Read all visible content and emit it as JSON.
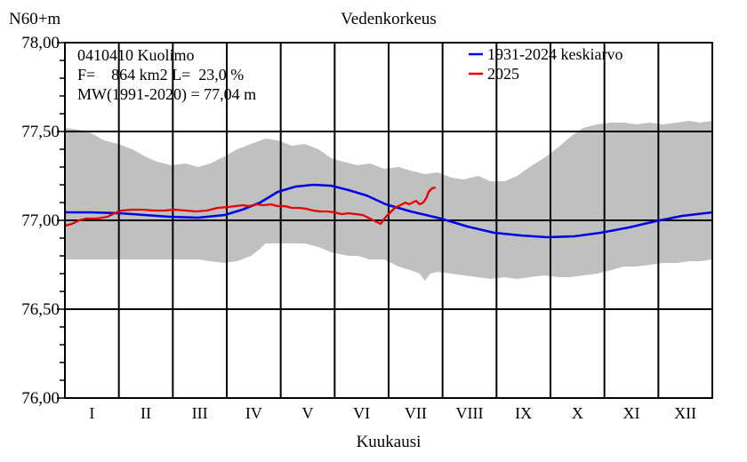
{
  "chart_data": {
    "type": "line",
    "title": "Vedenkorkeus",
    "ylabel": "N60+m",
    "xlabel": "Kuukausi",
    "ylim": [
      76.0,
      78.0
    ],
    "yticks": [
      {
        "value": 78.0,
        "label": "78,00"
      },
      {
        "value": 77.5,
        "label": "77,50"
      },
      {
        "value": 77.0,
        "label": "77,00"
      },
      {
        "value": 76.5,
        "label": "76,50"
      },
      {
        "value": 76.0,
        "label": "76,00"
      }
    ],
    "months": [
      "I",
      "II",
      "III",
      "IV",
      "V",
      "VI",
      "VII",
      "VIII",
      "IX",
      "X",
      "XI",
      "XII"
    ],
    "info": [
      "0410410 Kuolimo",
      "F=    864 km2 L=  23,0 %",
      "MW(1991-2020) = 77,04 m"
    ],
    "legend": [
      {
        "label": "1931-2024 keskiarvo",
        "color": "#0000e6"
      },
      {
        "label": "2025",
        "color": "#e60000"
      }
    ],
    "envelope": {
      "color": "#c0c0c0",
      "upper": [
        [
          0,
          77.52
        ],
        [
          8,
          77.51
        ],
        [
          15,
          77.49
        ],
        [
          22,
          77.45
        ],
        [
          30,
          77.43
        ],
        [
          38,
          77.4
        ],
        [
          45,
          77.36
        ],
        [
          52,
          77.33
        ],
        [
          60,
          77.31
        ],
        [
          68,
          77.32
        ],
        [
          75,
          77.3
        ],
        [
          82,
          77.32
        ],
        [
          90,
          77.36
        ],
        [
          97,
          77.4
        ],
        [
          105,
          77.43
        ],
        [
          113,
          77.46
        ],
        [
          120,
          77.45
        ],
        [
          128,
          77.42
        ],
        [
          135,
          77.43
        ],
        [
          143,
          77.4
        ],
        [
          150,
          77.35
        ],
        [
          157,
          77.33
        ],
        [
          165,
          77.31
        ],
        [
          172,
          77.32
        ],
        [
          180,
          77.29
        ],
        [
          188,
          77.3
        ],
        [
          195,
          77.28
        ],
        [
          203,
          77.26
        ],
        [
          210,
          77.27
        ],
        [
          218,
          77.24
        ],
        [
          225,
          77.23
        ],
        [
          233,
          77.25
        ],
        [
          240,
          77.22
        ],
        [
          248,
          77.22
        ],
        [
          255,
          77.25
        ],
        [
          262,
          77.3
        ],
        [
          270,
          77.35
        ],
        [
          278,
          77.41
        ],
        [
          285,
          77.47
        ],
        [
          292,
          77.52
        ],
        [
          300,
          77.54
        ],
        [
          308,
          77.55
        ],
        [
          315,
          77.55
        ],
        [
          322,
          77.54
        ],
        [
          330,
          77.55
        ],
        [
          337,
          77.54
        ],
        [
          345,
          77.55
        ],
        [
          352,
          77.56
        ],
        [
          358,
          77.55
        ],
        [
          365,
          77.56
        ]
      ],
      "lower": [
        [
          0,
          76.78
        ],
        [
          15,
          76.78
        ],
        [
          30,
          76.78
        ],
        [
          45,
          76.78
        ],
        [
          60,
          76.78
        ],
        [
          75,
          76.78
        ],
        [
          82,
          76.77
        ],
        [
          90,
          76.76
        ],
        [
          97,
          76.77
        ],
        [
          105,
          76.8
        ],
        [
          110,
          76.84
        ],
        [
          113,
          76.87
        ],
        [
          120,
          76.87
        ],
        [
          135,
          76.87
        ],
        [
          143,
          76.85
        ],
        [
          150,
          76.82
        ],
        [
          160,
          76.8
        ],
        [
          165,
          76.8
        ],
        [
          172,
          76.78
        ],
        [
          180,
          76.78
        ],
        [
          188,
          76.74
        ],
        [
          195,
          76.72
        ],
        [
          200,
          76.7
        ],
        [
          203,
          76.66
        ],
        [
          206,
          76.7
        ],
        [
          210,
          76.71
        ],
        [
          218,
          76.7
        ],
        [
          225,
          76.69
        ],
        [
          233,
          76.68
        ],
        [
          240,
          76.67
        ],
        [
          248,
          76.68
        ],
        [
          255,
          76.67
        ],
        [
          262,
          76.68
        ],
        [
          270,
          76.69
        ],
        [
          278,
          76.68
        ],
        [
          285,
          76.68
        ],
        [
          292,
          76.69
        ],
        [
          300,
          76.7
        ],
        [
          308,
          76.72
        ],
        [
          315,
          76.74
        ],
        [
          322,
          76.74
        ],
        [
          330,
          76.75
        ],
        [
          337,
          76.76
        ],
        [
          345,
          76.76
        ],
        [
          352,
          76.77
        ],
        [
          358,
          76.77
        ],
        [
          365,
          76.78
        ]
      ]
    },
    "series": [
      {
        "name": "1931-2024 keskiarvo",
        "color": "#0000e6",
        "points": [
          [
            0,
            77.045
          ],
          [
            15,
            77.045
          ],
          [
            31,
            77.04
          ],
          [
            45,
            77.03
          ],
          [
            59,
            77.02
          ],
          [
            75,
            77.015
          ],
          [
            90,
            77.03
          ],
          [
            100,
            77.06
          ],
          [
            110,
            77.1
          ],
          [
            120,
            77.16
          ],
          [
            130,
            77.19
          ],
          [
            140,
            77.2
          ],
          [
            150,
            77.195
          ],
          [
            160,
            77.17
          ],
          [
            170,
            77.14
          ],
          [
            181,
            77.09
          ],
          [
            195,
            77.05
          ],
          [
            212,
            77.01
          ],
          [
            227,
            76.965
          ],
          [
            242,
            76.93
          ],
          [
            257,
            76.915
          ],
          [
            272,
            76.905
          ],
          [
            287,
            76.91
          ],
          [
            302,
            76.93
          ],
          [
            318,
            76.96
          ],
          [
            333,
            76.995
          ],
          [
            348,
            77.025
          ],
          [
            365,
            77.045
          ]
        ]
      },
      {
        "name": "2025",
        "color": "#e60000",
        "points": [
          [
            0,
            76.97
          ],
          [
            4,
            76.98
          ],
          [
            8,
            77.0
          ],
          [
            12,
            77.01
          ],
          [
            18,
            77.01
          ],
          [
            24,
            77.02
          ],
          [
            28,
            77.04
          ],
          [
            32,
            77.055
          ],
          [
            38,
            77.06
          ],
          [
            44,
            77.06
          ],
          [
            50,
            77.055
          ],
          [
            56,
            77.055
          ],
          [
            62,
            77.06
          ],
          [
            68,
            77.055
          ],
          [
            74,
            77.05
          ],
          [
            80,
            77.055
          ],
          [
            86,
            77.07
          ],
          [
            92,
            77.075
          ],
          [
            96,
            77.08
          ],
          [
            100,
            77.085
          ],
          [
            104,
            77.08
          ],
          [
            108,
            77.09
          ],
          [
            112,
            77.085
          ],
          [
            116,
            77.09
          ],
          [
            120,
            77.08
          ],
          [
            124,
            77.08
          ],
          [
            128,
            77.07
          ],
          [
            132,
            77.07
          ],
          [
            136,
            77.065
          ],
          [
            140,
            77.055
          ],
          [
            144,
            77.05
          ],
          [
            148,
            77.05
          ],
          [
            152,
            77.045
          ],
          [
            156,
            77.035
          ],
          [
            160,
            77.04
          ],
          [
            164,
            77.035
          ],
          [
            168,
            77.03
          ],
          [
            172,
            77.01
          ],
          [
            174,
            77.0
          ],
          [
            176,
            76.99
          ],
          [
            178,
            76.98
          ],
          [
            181,
            77.02
          ],
          [
            184,
            77.05
          ],
          [
            186,
            77.07
          ],
          [
            188,
            77.08
          ],
          [
            190,
            77.09
          ],
          [
            192,
            77.1
          ],
          [
            194,
            77.09
          ],
          [
            196,
            77.1
          ],
          [
            198,
            77.11
          ],
          [
            200,
            77.09
          ],
          [
            202,
            77.1
          ],
          [
            204,
            77.13
          ],
          [
            205,
            77.16
          ],
          [
            207,
            77.18
          ],
          [
            209,
            77.185
          ]
        ]
      }
    ],
    "grid": true
  }
}
